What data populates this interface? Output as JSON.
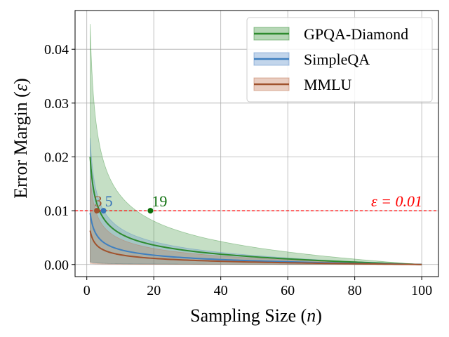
{
  "chart_data": {
    "type": "line",
    "xlabel": "Sampling Size (",
    "xlabel_var": "n",
    "xlabel_close": ")",
    "ylabel": "Error Margin (",
    "ylabel_var": "ε",
    "ylabel_close": ")",
    "xlim": [
      -3.5,
      105
    ],
    "ylim": [
      -0.00225,
      0.0472
    ],
    "xticks": [
      0,
      20,
      40,
      60,
      80,
      100
    ],
    "xtick_labels": [
      "0",
      "20",
      "40",
      "60",
      "80",
      "100"
    ],
    "yticks": [
      0.0,
      0.01,
      0.02,
      0.03,
      0.04
    ],
    "ytick_labels": [
      "0.00",
      "0.01",
      "0.02",
      "0.03",
      "0.04"
    ],
    "grid": true,
    "legend_position": "top-right",
    "threshold": {
      "value": 0.01,
      "label": "ε = 0.01",
      "color": "#ff0000"
    },
    "n_max": 100,
    "series": [
      {
        "name": "GPQA-Diamond",
        "color": "#2e8b2e",
        "band_color": "#2e8b2e",
        "mean_at_1": 0.02,
        "upper_at_1": 0.0447,
        "lower_at_1": 0.0005,
        "marker_n": 19,
        "marker_label": "19",
        "marker_color": "#0b6e0b"
      },
      {
        "name": "SimpleQA",
        "color": "#3f7fbf",
        "band_color": "#4f86c6",
        "mean_at_1": 0.0096,
        "upper_at_1": 0.0235,
        "lower_at_1": 0.0005,
        "marker_n": 5,
        "marker_label": "5",
        "marker_color": "#3a75b8"
      },
      {
        "name": "MMLU",
        "color": "#a0522d",
        "band_color": "#c0704e",
        "mean_at_1": 0.0063,
        "upper_at_1": 0.0165,
        "lower_at_1": 0.0002,
        "marker_n": 3,
        "marker_label": "3",
        "marker_color": "#a0522d"
      }
    ]
  }
}
